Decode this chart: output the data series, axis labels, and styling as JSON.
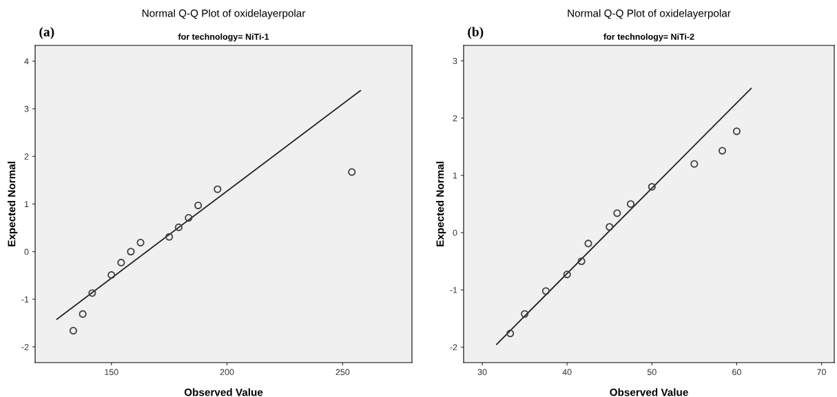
{
  "chart_data": [
    {
      "type": "scatter",
      "title": "Normal Q-Q Plot of oxidelayerpolar",
      "subtitle": "for technology= NiTi-1",
      "xlabel": "Observed Value",
      "ylabel": "Expected Normal",
      "annotations": [
        "(a)"
      ],
      "xlim": [
        117,
        280
      ],
      "ylim": [
        -2.33,
        4.33
      ],
      "xticks": [
        150,
        200,
        250
      ],
      "yticks": [
        -2,
        -1,
        0,
        1,
        2,
        3,
        4
      ],
      "series": [
        {
          "marker": "circle",
          "color": "#404040",
          "x": [
            133.5,
            137.6,
            141.7,
            150,
            154.2,
            158.4,
            162.6,
            175,
            179.1,
            183.4,
            187.5,
            195.9,
            254
          ],
          "values": [
            -1.66,
            -1.31,
            -0.87,
            -0.49,
            -0.23,
            0.0,
            0.19,
            0.31,
            0.51,
            0.71,
            0.97,
            1.31,
            1.67
          ]
        },
        {
          "type": "line",
          "marker": "none",
          "color": "#202020",
          "x": [
            126.4,
            257.7
          ],
          "values": [
            -1.42,
            3.38
          ]
        }
      ]
    },
    {
      "type": "scatter",
      "title": "Normal Q-Q Plot of oxidelayerpolar",
      "subtitle": "for technology= NiTi-2",
      "xlabel": "Observed Value",
      "ylabel": "Expected Normal",
      "annotations": [
        "(b)"
      ],
      "xlim": [
        27.8,
        71.5
      ],
      "ylim": [
        -2.27,
        3.27
      ],
      "xticks": [
        30,
        40,
        50,
        60,
        70
      ],
      "yticks": [
        -2,
        -1,
        0,
        1,
        2,
        3
      ],
      "series": [
        {
          "marker": "circle",
          "color": "#404040",
          "x": [
            33.3,
            35.0,
            37.5,
            40.0,
            41.7,
            42.5,
            45.0,
            45.9,
            47.5,
            50.0,
            55.0,
            58.3,
            60.0
          ],
          "values": [
            -1.76,
            -1.42,
            -1.02,
            -0.73,
            -0.5,
            -0.19,
            0.1,
            0.34,
            0.5,
            0.8,
            1.2,
            1.43,
            1.77
          ]
        },
        {
          "type": "line",
          "marker": "none",
          "color": "#202020",
          "x": [
            31.7,
            61.7
          ],
          "values": [
            -1.95,
            2.52
          ]
        }
      ]
    }
  ]
}
